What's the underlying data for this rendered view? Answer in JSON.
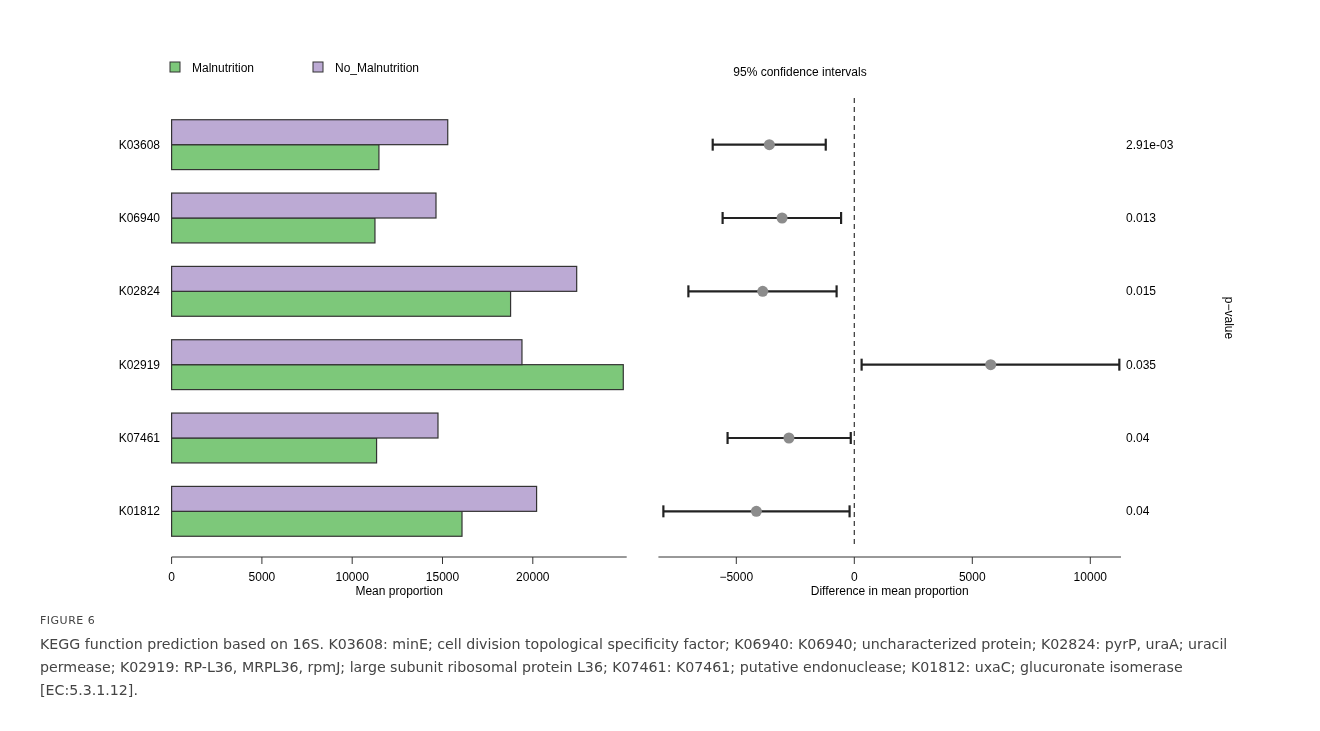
{
  "chart_data": [
    {
      "type": "bar",
      "orientation": "horizontal",
      "categories": [
        "K03608",
        "K06940",
        "K02824",
        "K02919",
        "K07461",
        "K01812"
      ],
      "series": [
        {
          "name": "Malnutrition",
          "color": "#7dc87a",
          "values": [
            11480,
            11260,
            18770,
            25010,
            11350,
            16080
          ]
        },
        {
          "name": "No_Malnutrition",
          "color": "#bcaad4",
          "values": [
            15290,
            14640,
            22430,
            19400,
            14750,
            20210
          ]
        }
      ],
      "xlim": [
        0,
        25200
      ],
      "xticks": [
        0,
        5000,
        10000,
        15000,
        20000
      ],
      "xlabel": "Mean proportion",
      "legend": "top left",
      "annotations": [
        "FIGURE 6",
        "KEGG function prediction based on 16S. K03608: minE; cell division topological specificity factor; K06940: K06940; uncharacterized protein; K02824: pyrP, uraA; uracil permease; K02919: RP-L36, MRPL36, rpmJ; large subunit ribosomal protein L36; K07461: K07461; putative endonuclease; K01812: uxaC; glucuronate isomerase [EC:5.3.1.12]."
      ]
    },
    {
      "type": "scatter",
      "orientation": "horizontal",
      "title": "95% confidence intervals",
      "categories": [
        null,
        null,
        null,
        null,
        null,
        null
      ],
      "values": [
        -3600,
        -3060,
        -3880,
        5780,
        -2770,
        -4150
      ],
      "errors": [
        [
          -6000,
          -1210
        ],
        [
          -5580,
          -560
        ],
        [
          -7030,
          -750
        ],
        [
          310,
          11230
        ],
        [
          -5370,
          -150
        ],
        [
          -8090,
          -200
        ]
      ],
      "color": "#8c8c8c",
      "marker": "circle",
      "xlim": [
        -8300,
        11300
      ],
      "xticks": [
        -5000,
        0,
        5000,
        10000
      ],
      "xlabel": "Difference in mean proportion",
      "ref_lines": [
        {
          "axis": "x",
          "value": 0,
          "line_style": "dashed"
        }
      ],
      "tick_labels": "x",
      "y2label": "p−value",
      "annotations": [
        "2.91e-03",
        "0.013",
        "0.015",
        "0.035",
        "0.04",
        "0.04"
      ]
    }
  ]
}
